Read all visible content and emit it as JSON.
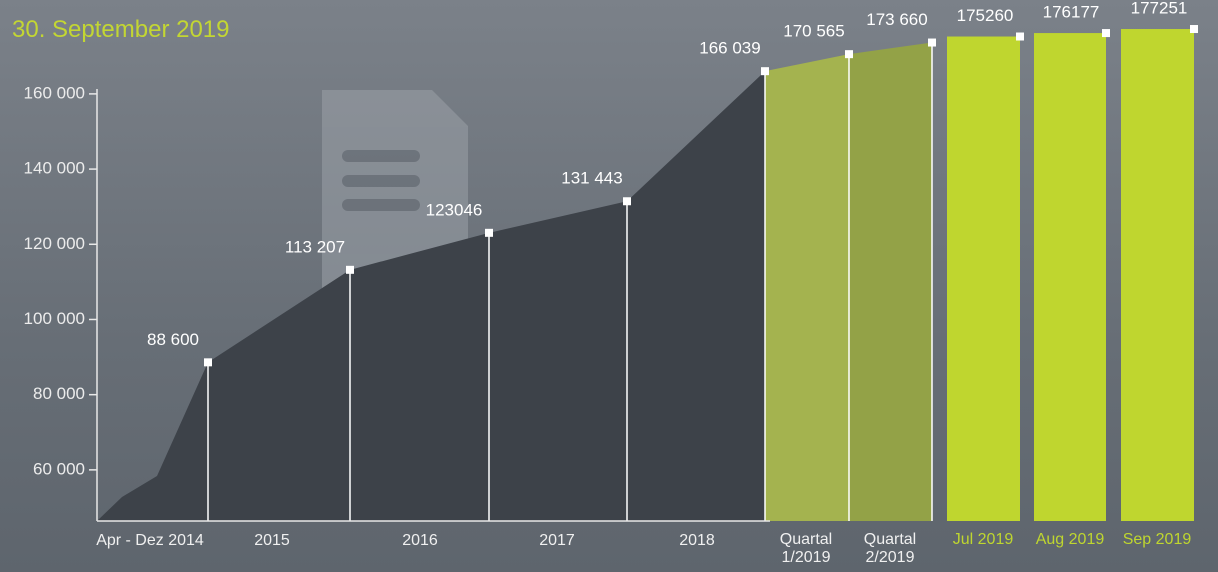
{
  "chart_data": {
    "type": "area",
    "subtitle": "30. September 2019",
    "categories": [
      "Apr - Dez 2014",
      "2015",
      "2016",
      "2017",
      "2018",
      "Quartal 1/2019",
      "Quartal 2/2019",
      "Jul 2019",
      "Aug 2019",
      "Sep 2019"
    ],
    "series": [
      {
        "type": "area",
        "color": "#3d4249",
        "highlight_colors": [
          "#a4b34f",
          "#93a247"
        ],
        "values": [
          88600,
          113207,
          123046,
          131443,
          166039,
          170565,
          173660,
          null,
          null,
          null
        ],
        "value_labels": [
          "88 600",
          "113 207",
          "123046",
          "131 443",
          "166 039",
          "170 565",
          "173 660",
          null,
          null,
          null
        ]
      },
      {
        "type": "bar",
        "color": "#bfd62f",
        "values": [
          null,
          null,
          null,
          null,
          null,
          null,
          null,
          175260,
          176177,
          177251
        ],
        "value_labels": [
          null,
          null,
          null,
          null,
          null,
          null,
          null,
          "175260",
          "176177",
          "177251"
        ]
      }
    ],
    "ylim": [
      46400,
      161300
    ],
    "yticks": [
      {
        "value": 60000,
        "label": "60 000"
      },
      {
        "value": 80000,
        "label": "80 000"
      },
      {
        "value": 100000,
        "label": "100 000"
      },
      {
        "value": 120000,
        "label": "120 000"
      },
      {
        "value": 140000,
        "label": "140 000"
      },
      {
        "value": 160000,
        "label": "160 000"
      }
    ]
  }
}
